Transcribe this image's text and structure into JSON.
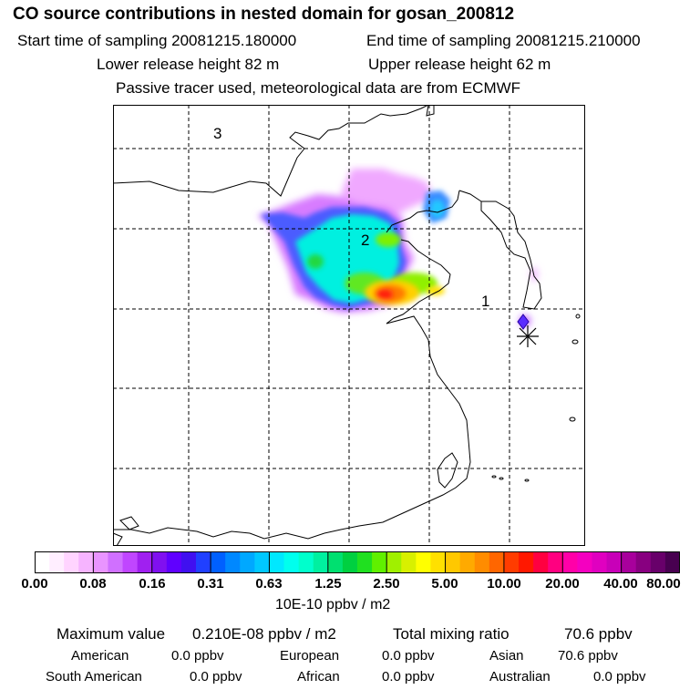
{
  "header": {
    "title": "CO  source contributions in nested domain for gosan_200812",
    "start_time": "Start time of sampling 20081215.180000",
    "end_time": "End time of sampling 20081215.210000",
    "lower_release": "Lower release height   82 m",
    "upper_release": "Upper release height   62 m",
    "info": "Passive tracer used, meteorological data are from ECMWF"
  },
  "map": {
    "labels": [
      "3",
      "2",
      "1"
    ],
    "site_marker": "measurement-site-star"
  },
  "colorbar": {
    "ticks": [
      "0.00",
      "0.08",
      "0.16",
      "0.31",
      "0.63",
      "1.25",
      "2.50",
      "5.00",
      "10.00",
      "20.00",
      "40.00",
      "80.00"
    ],
    "unit": "10E-10 ppbv / m2",
    "colors": [
      "#ffffff",
      "#ffeeff",
      "#ffd4ff",
      "#f6b4ff",
      "#e994ff",
      "#d070ff",
      "#c046ff",
      "#a020f0",
      "#8010f0",
      "#6000ff",
      "#4010f0",
      "#2040ff",
      "#0060ff",
      "#0088ff",
      "#00a8ff",
      "#00c8ff",
      "#00e8ff",
      "#00ffee",
      "#00ffcc",
      "#00f0a0",
      "#00e070",
      "#00d040",
      "#20e020",
      "#60f000",
      "#a0f000",
      "#d8f000",
      "#ffff00",
      "#ffe000",
      "#ffc800",
      "#ffaa00",
      "#ff8c00",
      "#ff6600",
      "#ff3c00",
      "#ff1800",
      "#ff0040",
      "#ff0080",
      "#ff00a8",
      "#f400c0",
      "#e000c0",
      "#c800b8",
      "#a8009c",
      "#880080",
      "#68006a",
      "#480050"
    ]
  },
  "stats": {
    "max_label": "Maximum value",
    "max_value": "0.210E-08 ppbv / m2",
    "total_label": "Total mixing ratio",
    "total_value": "70.6 ppbv",
    "regions": [
      {
        "name": "American",
        "value": "0.0 ppbv"
      },
      {
        "name": "European",
        "value": "0.0 ppbv"
      },
      {
        "name": "Asian",
        "value": "70.6 ppbv"
      },
      {
        "name": "South American",
        "value": "0.0 ppbv"
      },
      {
        "name": "African",
        "value": "0.0 ppbv"
      },
      {
        "name": "Australian",
        "value": "0.0 ppbv"
      }
    ]
  }
}
